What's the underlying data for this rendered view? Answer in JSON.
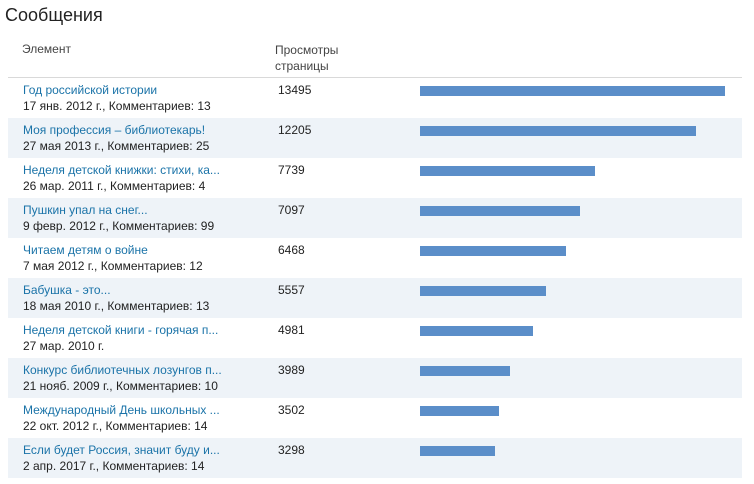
{
  "page_title": "Сообщения",
  "columns": {
    "element": "Элемент",
    "views_line1": "Просмотры",
    "views_line2": "страницы"
  },
  "max_views": 13495,
  "bar_color": "#5b8ec9",
  "link_color": "#1a73a8",
  "rows": [
    {
      "title": "Год российской истории",
      "meta": "17 янв. 2012 г., Комментариев: 13",
      "views": 13495
    },
    {
      "title": "Моя профессия – библиотекарь!",
      "meta": "27 мая 2013 г., Комментариев: 25",
      "views": 12205
    },
    {
      "title": "Неделя детской книжки: стихи, ка...",
      "meta": "26 мар. 2011 г., Комментариев: 4",
      "views": 7739
    },
    {
      "title": "Пушкин упал на снег...",
      "meta": "9 февр. 2012 г., Комментариев: 99",
      "views": 7097
    },
    {
      "title": "Читаем детям о войне",
      "meta": "7 мая 2012 г., Комментариев: 12",
      "views": 6468
    },
    {
      "title": "Бабушка - это...",
      "meta": "18 мая 2010 г., Комментариев: 13",
      "views": 5557
    },
    {
      "title": "Неделя детской книги - горячая п...",
      "meta": "27 мар. 2010 г.",
      "views": 4981
    },
    {
      "title": "Конкурс библиотечных лозунгов п...",
      "meta": "21 нояб. 2009 г., Комментариев: 10",
      "views": 3989
    },
    {
      "title": "Международный День школьных ...",
      "meta": "22 окт. 2012 г., Комментариев: 14",
      "views": 3502
    },
    {
      "title": "Если будет Россия, значит буду и...",
      "meta": "2 апр. 2017 г., Комментариев: 14",
      "views": 3298
    }
  ]
}
